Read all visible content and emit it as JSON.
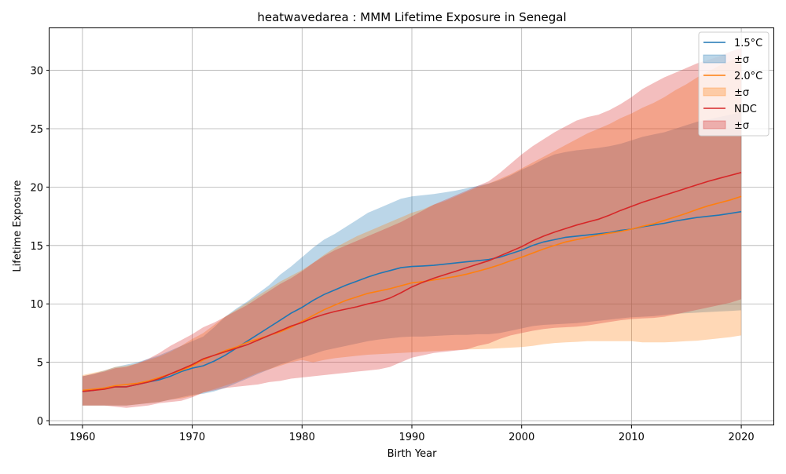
{
  "chart_data": {
    "type": "area",
    "title": "heatwavedarea : MMM Lifetime Exposure in Senegal",
    "xlabel": "Birth Year",
    "ylabel": "Lifetime Exposure",
    "xlim": [
      1957,
      2023
    ],
    "ylim": [
      -0.4,
      33.6
    ],
    "xticks": [
      1960,
      1970,
      1980,
      1990,
      2000,
      2010,
      2020
    ],
    "yticks": [
      0,
      5,
      10,
      15,
      20,
      25,
      30
    ],
    "grid": true,
    "legend_position": "top-right",
    "x": [
      1960,
      1961,
      1962,
      1963,
      1964,
      1965,
      1966,
      1967,
      1968,
      1969,
      1970,
      1971,
      1972,
      1973,
      1974,
      1975,
      1976,
      1977,
      1978,
      1979,
      1980,
      1981,
      1982,
      1983,
      1984,
      1985,
      1986,
      1987,
      1988,
      1989,
      1990,
      1991,
      1992,
      1993,
      1994,
      1995,
      1996,
      1997,
      1998,
      1999,
      2000,
      2001,
      2002,
      2003,
      2004,
      2005,
      2006,
      2007,
      2008,
      2009,
      2010,
      2011,
      2012,
      2013,
      2014,
      2015,
      2016,
      2017,
      2018,
      2019,
      2020
    ],
    "series": [
      {
        "name": "1.5°C",
        "band_name": "±σ",
        "color": "#1f77b4",
        "mean": [
          2.5,
          2.6,
          2.8,
          2.9,
          2.9,
          3.1,
          3.3,
          3.5,
          3.8,
          4.2,
          4.5,
          4.7,
          5.1,
          5.6,
          6.2,
          6.8,
          7.4,
          8.0,
          8.6,
          9.2,
          9.7,
          10.3,
          10.8,
          11.2,
          11.6,
          11.95,
          12.3,
          12.6,
          12.85,
          13.1,
          13.2,
          13.25,
          13.3,
          13.4,
          13.5,
          13.6,
          13.7,
          13.8,
          14.0,
          14.3,
          14.6,
          15.0,
          15.3,
          15.5,
          15.7,
          15.8,
          15.9,
          16.0,
          16.1,
          16.3,
          16.4,
          16.6,
          16.75,
          16.9,
          17.1,
          17.25,
          17.4,
          17.5,
          17.6,
          17.75,
          17.9
        ],
        "upper": [
          3.8,
          4.0,
          4.3,
          4.6,
          4.8,
          5.0,
          5.3,
          5.6,
          6.0,
          6.4,
          6.8,
          7.2,
          8.0,
          8.9,
          9.6,
          10.2,
          10.9,
          11.6,
          12.5,
          13.2,
          14.0,
          14.8,
          15.5,
          16.0,
          16.6,
          17.2,
          17.8,
          18.2,
          18.6,
          19.0,
          19.2,
          19.3,
          19.4,
          19.55,
          19.7,
          19.9,
          20.1,
          20.3,
          20.6,
          21.0,
          21.5,
          21.9,
          22.4,
          22.8,
          23.0,
          23.15,
          23.25,
          23.35,
          23.5,
          23.7,
          24.0,
          24.3,
          24.5,
          24.7,
          25.0,
          25.3,
          25.6,
          25.8,
          26.0,
          26.2,
          26.4
        ],
        "lower": [
          1.3,
          1.3,
          1.3,
          1.3,
          1.3,
          1.4,
          1.5,
          1.6,
          1.8,
          2.0,
          2.2,
          2.3,
          2.5,
          2.8,
          3.2,
          3.6,
          4.0,
          4.4,
          4.8,
          5.1,
          5.4,
          5.7,
          6.0,
          6.2,
          6.4,
          6.6,
          6.8,
          6.95,
          7.05,
          7.15,
          7.2,
          7.2,
          7.25,
          7.3,
          7.35,
          7.35,
          7.4,
          7.4,
          7.5,
          7.7,
          7.9,
          8.1,
          8.2,
          8.25,
          8.3,
          8.35,
          8.45,
          8.55,
          8.65,
          8.75,
          8.85,
          8.9,
          8.95,
          9.05,
          9.15,
          9.2,
          9.25,
          9.3,
          9.35,
          9.4,
          9.45
        ]
      },
      {
        "name": "2.0°C",
        "band_name": "±σ",
        "color": "#ff7f0e",
        "mean": [
          2.6,
          2.7,
          2.8,
          3.0,
          3.1,
          3.2,
          3.4,
          3.7,
          4.0,
          4.3,
          4.7,
          5.2,
          5.6,
          6.0,
          6.3,
          6.7,
          7.0,
          7.3,
          7.6,
          8.0,
          8.5,
          9.0,
          9.5,
          9.9,
          10.3,
          10.6,
          10.9,
          11.1,
          11.3,
          11.55,
          11.8,
          11.9,
          12.05,
          12.2,
          12.35,
          12.55,
          12.8,
          13.05,
          13.35,
          13.7,
          14.0,
          14.35,
          14.7,
          15.0,
          15.3,
          15.5,
          15.7,
          15.9,
          16.05,
          16.2,
          16.4,
          16.65,
          16.85,
          17.15,
          17.45,
          17.75,
          18.1,
          18.4,
          18.65,
          18.9,
          19.2
        ],
        "upper": [
          3.9,
          4.1,
          4.3,
          4.6,
          4.7,
          4.9,
          5.2,
          5.5,
          5.9,
          6.4,
          7.0,
          7.5,
          8.2,
          8.9,
          9.5,
          10.1,
          10.7,
          11.3,
          11.9,
          12.4,
          12.9,
          13.5,
          14.2,
          14.8,
          15.3,
          15.8,
          16.2,
          16.6,
          17.0,
          17.4,
          17.8,
          18.1,
          18.5,
          18.8,
          19.2,
          19.6,
          20.0,
          20.3,
          20.7,
          21.1,
          21.6,
          22.1,
          22.6,
          23.1,
          23.6,
          24.1,
          24.6,
          25.0,
          25.4,
          25.9,
          26.3,
          26.8,
          27.2,
          27.7,
          28.3,
          28.8,
          29.4,
          29.9,
          30.4,
          30.8,
          31.3
        ],
        "lower": [
          1.3,
          1.3,
          1.3,
          1.3,
          1.3,
          1.4,
          1.5,
          1.6,
          1.8,
          1.9,
          2.1,
          2.4,
          2.7,
          3.0,
          3.3,
          3.7,
          4.1,
          4.4,
          4.7,
          5.0,
          5.2,
          5.0,
          5.2,
          5.35,
          5.45,
          5.55,
          5.65,
          5.7,
          5.75,
          5.8,
          5.85,
          5.9,
          5.95,
          6.0,
          6.05,
          6.1,
          6.12,
          6.15,
          6.2,
          6.25,
          6.3,
          6.4,
          6.55,
          6.65,
          6.7,
          6.75,
          6.8,
          6.8,
          6.8,
          6.8,
          6.8,
          6.7,
          6.7,
          6.7,
          6.75,
          6.8,
          6.85,
          6.95,
          7.05,
          7.15,
          7.3
        ]
      },
      {
        "name": "NDC",
        "band_name": "±σ",
        "color": "#d62728",
        "mean": [
          2.5,
          2.6,
          2.7,
          2.9,
          2.9,
          3.1,
          3.3,
          3.6,
          4.0,
          4.4,
          4.8,
          5.3,
          5.6,
          5.9,
          6.2,
          6.5,
          6.9,
          7.3,
          7.7,
          8.1,
          8.4,
          8.8,
          9.1,
          9.35,
          9.55,
          9.75,
          10.0,
          10.2,
          10.5,
          10.95,
          11.45,
          11.85,
          12.2,
          12.5,
          12.8,
          13.1,
          13.4,
          13.7,
          14.1,
          14.5,
          14.9,
          15.4,
          15.8,
          16.15,
          16.45,
          16.75,
          17.0,
          17.25,
          17.6,
          18.0,
          18.35,
          18.7,
          19.0,
          19.3,
          19.6,
          19.9,
          20.2,
          20.5,
          20.75,
          21.0,
          21.25
        ],
        "upper": [
          3.8,
          4.0,
          4.2,
          4.5,
          4.6,
          4.9,
          5.3,
          5.8,
          6.4,
          6.9,
          7.4,
          8.0,
          8.4,
          8.9,
          9.4,
          9.9,
          10.5,
          11.1,
          11.7,
          12.2,
          12.8,
          13.5,
          14.1,
          14.6,
          15.0,
          15.4,
          15.8,
          16.2,
          16.6,
          17.0,
          17.5,
          18.0,
          18.5,
          18.9,
          19.3,
          19.7,
          20.1,
          20.5,
          21.2,
          22.0,
          22.8,
          23.5,
          24.1,
          24.7,
          25.2,
          25.7,
          26.0,
          26.2,
          26.6,
          27.1,
          27.7,
          28.4,
          28.9,
          29.4,
          29.8,
          30.2,
          30.6,
          30.9,
          31.2,
          31.6,
          31.9
        ],
        "lower": [
          1.3,
          1.3,
          1.3,
          1.2,
          1.1,
          1.2,
          1.3,
          1.5,
          1.6,
          1.7,
          2.0,
          2.4,
          2.6,
          2.8,
          2.9,
          3.0,
          3.1,
          3.3,
          3.4,
          3.6,
          3.7,
          3.8,
          3.9,
          4.0,
          4.1,
          4.2,
          4.3,
          4.4,
          4.6,
          5.0,
          5.4,
          5.6,
          5.8,
          5.9,
          6.0,
          6.1,
          6.4,
          6.6,
          7.0,
          7.3,
          7.5,
          7.7,
          7.85,
          7.95,
          8.0,
          8.05,
          8.15,
          8.3,
          8.45,
          8.6,
          8.7,
          8.75,
          8.8,
          8.9,
          9.1,
          9.3,
          9.5,
          9.7,
          9.9,
          10.1,
          10.4
        ]
      }
    ]
  }
}
